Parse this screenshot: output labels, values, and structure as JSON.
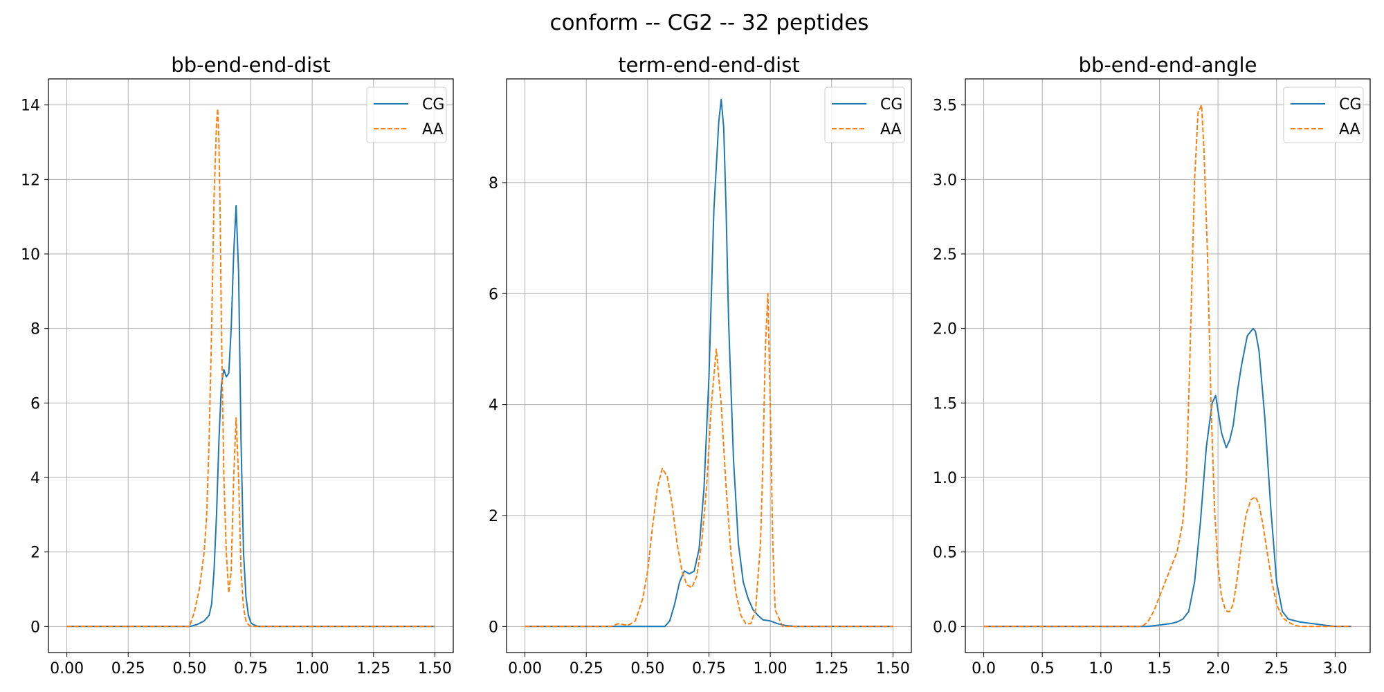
{
  "figure": {
    "suptitle": "conform -- CG2 -- 32 peptides"
  },
  "colors": {
    "cg": "#1f77b4",
    "aa": "#ff7f0e",
    "grid": "#b0b0b0",
    "legend_border": "#cccccc"
  },
  "chart_data": [
    {
      "type": "line",
      "title": "bb-end-end-dist",
      "xlabel": "",
      "ylabel": "",
      "xlim": [
        -0.075,
        1.575
      ],
      "ylim": [
        -0.7,
        14.7
      ],
      "xticks": [
        0,
        0.25,
        0.5,
        0.75,
        1.0,
        1.25,
        1.5
      ],
      "xtick_labels": [
        "0.00",
        "0.25",
        "0.50",
        "0.75",
        "1.00",
        "1.25",
        "1.50"
      ],
      "yticks": [
        0,
        2,
        4,
        6,
        8,
        10,
        12,
        14
      ],
      "ytick_labels": [
        "0",
        "2",
        "4",
        "6",
        "8",
        "10",
        "12",
        "14"
      ],
      "grid": true,
      "legend": "top-right",
      "series": [
        {
          "name": "CG",
          "style": "solid",
          "x": [
            0,
            0.5,
            0.53,
            0.56,
            0.58,
            0.59,
            0.6,
            0.61,
            0.62,
            0.63,
            0.64,
            0.65,
            0.66,
            0.67,
            0.68,
            0.69,
            0.7,
            0.71,
            0.72,
            0.73,
            0.74,
            0.75,
            0.76,
            0.78,
            0.8,
            1.5
          ],
          "y": [
            0,
            0,
            0.05,
            0.15,
            0.3,
            0.6,
            1.5,
            3.0,
            5.0,
            6.5,
            6.9,
            6.7,
            6.8,
            8.0,
            10.0,
            11.3,
            9.5,
            5.0,
            2.0,
            0.8,
            0.3,
            0.1,
            0.05,
            0,
            0,
            0
          ]
        },
        {
          "name": "AA",
          "style": "dashed",
          "x": [
            0,
            0.5,
            0.52,
            0.54,
            0.56,
            0.57,
            0.58,
            0.59,
            0.6,
            0.61,
            0.615,
            0.62,
            0.625,
            0.63,
            0.64,
            0.65,
            0.66,
            0.67,
            0.68,
            0.69,
            0.7,
            0.71,
            0.72,
            0.73,
            0.74,
            0.75,
            0.76,
            0.78,
            0.8,
            1.5
          ],
          "y": [
            0,
            0,
            0.4,
            1.0,
            2.0,
            3.0,
            5.0,
            8.0,
            11.5,
            13.5,
            13.9,
            13.0,
            11.0,
            8.0,
            4.0,
            2.0,
            0.9,
            1.5,
            4.0,
            5.6,
            4.0,
            1.5,
            0.5,
            0.15,
            0.05,
            0,
            0,
            0,
            0,
            0
          ]
        }
      ]
    },
    {
      "type": "line",
      "title": "term-end-end-dist",
      "xlabel": "",
      "ylabel": "",
      "xlim": [
        -0.075,
        1.575
      ],
      "ylim": [
        -0.47,
        9.87
      ],
      "xticks": [
        0,
        0.25,
        0.5,
        0.75,
        1.0,
        1.25,
        1.5
      ],
      "xtick_labels": [
        "0.00",
        "0.25",
        "0.50",
        "0.75",
        "1.00",
        "1.25",
        "1.50"
      ],
      "yticks": [
        0,
        2,
        4,
        6,
        8
      ],
      "ytick_labels": [
        "0",
        "2",
        "4",
        "6",
        "8"
      ],
      "grid": true,
      "legend": "top-right",
      "series": [
        {
          "name": "CG",
          "style": "solid",
          "x": [
            0,
            0.57,
            0.59,
            0.61,
            0.63,
            0.65,
            0.67,
            0.69,
            0.71,
            0.73,
            0.75,
            0.77,
            0.79,
            0.8,
            0.81,
            0.82,
            0.83,
            0.85,
            0.87,
            0.89,
            0.91,
            0.93,
            0.95,
            0.97,
            1.0,
            1.03,
            1.06,
            1.1,
            1.5
          ],
          "y": [
            0,
            0,
            0.1,
            0.4,
            0.8,
            1.0,
            0.95,
            1.0,
            1.4,
            2.5,
            4.5,
            7.5,
            9.1,
            9.5,
            9.0,
            7.5,
            5.5,
            3.0,
            1.5,
            0.8,
            0.5,
            0.3,
            0.2,
            0.12,
            0.1,
            0.05,
            0.02,
            0,
            0
          ]
        },
        {
          "name": "AA",
          "style": "dashed",
          "x": [
            0,
            0.35,
            0.38,
            0.42,
            0.45,
            0.48,
            0.5,
            0.52,
            0.54,
            0.56,
            0.58,
            0.6,
            0.62,
            0.64,
            0.66,
            0.68,
            0.7,
            0.72,
            0.74,
            0.76,
            0.78,
            0.8,
            0.82,
            0.84,
            0.86,
            0.88,
            0.9,
            0.92,
            0.94,
            0.96,
            0.97,
            0.98,
            0.99,
            1.0,
            1.01,
            1.02,
            1.05,
            1.5
          ],
          "y": [
            0,
            0,
            0.05,
            0.02,
            0.1,
            0.5,
            1.0,
            1.8,
            2.5,
            2.85,
            2.7,
            2.2,
            1.5,
            1.0,
            0.75,
            0.7,
            0.9,
            1.5,
            2.5,
            4.0,
            5.0,
            4.0,
            2.5,
            1.3,
            0.6,
            0.2,
            0.05,
            0.05,
            0.3,
            1.5,
            3.0,
            5.0,
            6.0,
            4.0,
            1.5,
            0.3,
            0,
            0
          ]
        }
      ]
    },
    {
      "type": "line",
      "title": "bb-end-end-angle",
      "xlabel": "",
      "ylabel": "",
      "xlim": [
        -0.157,
        3.299
      ],
      "ylim": [
        -0.175,
        3.675
      ],
      "xticks": [
        0,
        0.5,
        1.0,
        1.5,
        2.0,
        2.5,
        3.0
      ],
      "xtick_labels": [
        "0.0",
        "0.5",
        "1.0",
        "1.5",
        "2.0",
        "2.5",
        "3.0"
      ],
      "yticks": [
        0,
        0.5,
        1.0,
        1.5,
        2.0,
        2.5,
        3.0,
        3.5
      ],
      "ytick_labels": [
        "0.0",
        "0.5",
        "1.0",
        "1.5",
        "2.0",
        "2.5",
        "3.0",
        "3.5"
      ],
      "grid": true,
      "legend": "top-right",
      "series": [
        {
          "name": "CG",
          "style": "solid",
          "x": [
            0,
            1.4,
            1.5,
            1.6,
            1.65,
            1.7,
            1.75,
            1.8,
            1.85,
            1.9,
            1.95,
            1.98,
            2.0,
            2.03,
            2.07,
            2.1,
            2.13,
            2.17,
            2.2,
            2.25,
            2.3,
            2.32,
            2.35,
            2.4,
            2.45,
            2.5,
            2.55,
            2.6,
            2.7,
            2.8,
            2.9,
            3.0,
            3.14
          ],
          "y": [
            0,
            0,
            0.01,
            0.02,
            0.03,
            0.05,
            0.1,
            0.3,
            0.7,
            1.2,
            1.5,
            1.55,
            1.45,
            1.3,
            1.2,
            1.25,
            1.35,
            1.6,
            1.75,
            1.95,
            2.0,
            1.98,
            1.85,
            1.4,
            0.8,
            0.3,
            0.1,
            0.05,
            0.03,
            0.02,
            0.01,
            0,
            0
          ]
        },
        {
          "name": "AA",
          "style": "dashed",
          "x": [
            0,
            1.35,
            1.4,
            1.45,
            1.5,
            1.55,
            1.6,
            1.65,
            1.7,
            1.73,
            1.76,
            1.8,
            1.83,
            1.86,
            1.88,
            1.91,
            1.94,
            1.97,
            2.0,
            2.03,
            2.06,
            2.08,
            2.1,
            2.13,
            2.16,
            2.2,
            2.24,
            2.28,
            2.32,
            2.35,
            2.38,
            2.42,
            2.46,
            2.5,
            2.55,
            2.6,
            2.65,
            2.7,
            2.8,
            3.14
          ],
          "y": [
            0,
            0,
            0.03,
            0.1,
            0.2,
            0.3,
            0.4,
            0.5,
            0.7,
            1.0,
            1.8,
            3.0,
            3.45,
            3.5,
            3.2,
            2.5,
            1.5,
            0.8,
            0.4,
            0.2,
            0.12,
            0.1,
            0.1,
            0.15,
            0.3,
            0.55,
            0.75,
            0.85,
            0.87,
            0.82,
            0.7,
            0.5,
            0.3,
            0.15,
            0.06,
            0.03,
            0.01,
            0,
            0,
            0
          ]
        }
      ]
    }
  ]
}
